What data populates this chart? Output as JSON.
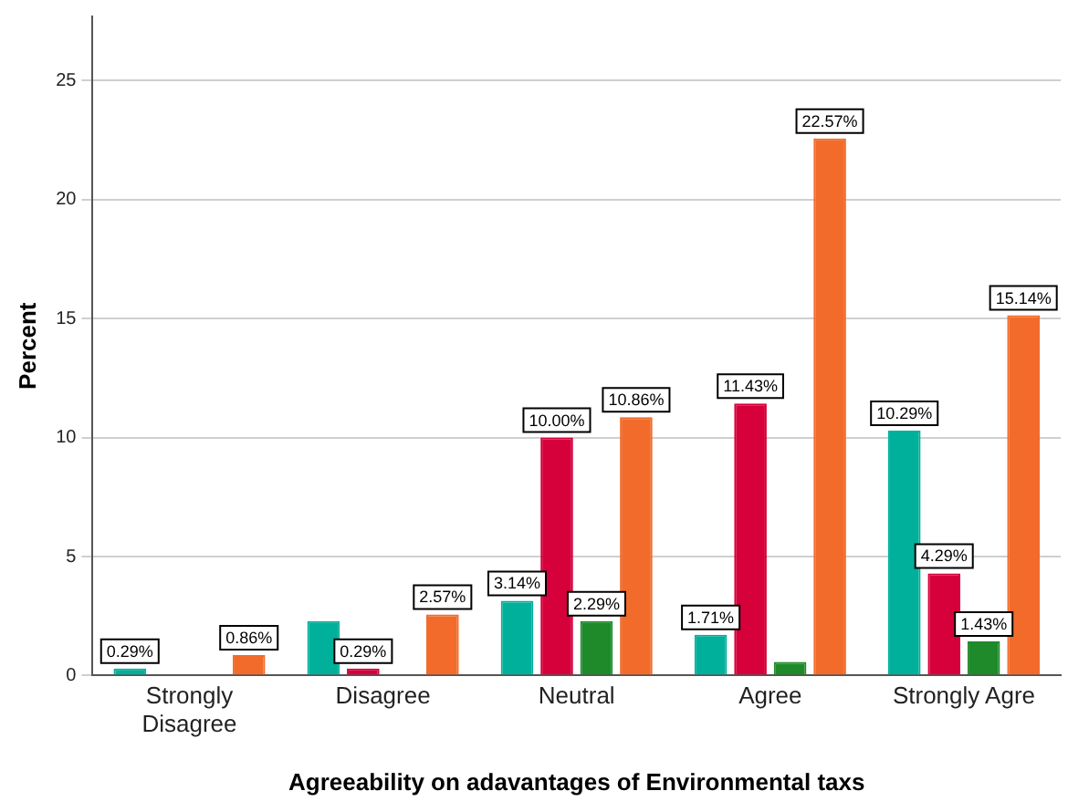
{
  "chart_data": {
    "type": "bar",
    "xlabel": "Agreeability on adavantages of Environmental taxs",
    "ylabel": "Percent",
    "categories": [
      "Strongly\nDisagree",
      "Disagree",
      "Neutral",
      "Agree",
      "Strongly Agre"
    ],
    "series": [
      {
        "color": "#00b09b",
        "values": [
          0.29,
          2.29,
          3.14,
          1.71,
          10.29
        ],
        "value_labels": [
          "0.29%",
          null,
          "3.14%",
          "1.71%",
          "10.29%"
        ]
      },
      {
        "color": "#d6003a",
        "values": [
          null,
          0.29,
          10.0,
          11.43,
          4.29
        ],
        "value_labels": [
          null,
          "0.29%",
          "10.00%",
          "11.43%",
          "4.29%"
        ]
      },
      {
        "color": "#1e8a2a",
        "values": [
          null,
          null,
          2.29,
          0.57,
          1.43
        ],
        "value_labels": [
          null,
          null,
          "2.29%",
          null,
          "1.43%"
        ]
      },
      {
        "color": "#f26b2a",
        "values": [
          0.86,
          2.57,
          10.86,
          22.57,
          15.14
        ],
        "value_labels": [
          "0.86%",
          "2.57%",
          "10.86%",
          "22.57%",
          "15.14%"
        ]
      }
    ],
    "ylim": [
      0,
      27.7
    ],
    "yticks": [
      0,
      5,
      10,
      15,
      20,
      25
    ],
    "grid": "y",
    "legend": false
  }
}
